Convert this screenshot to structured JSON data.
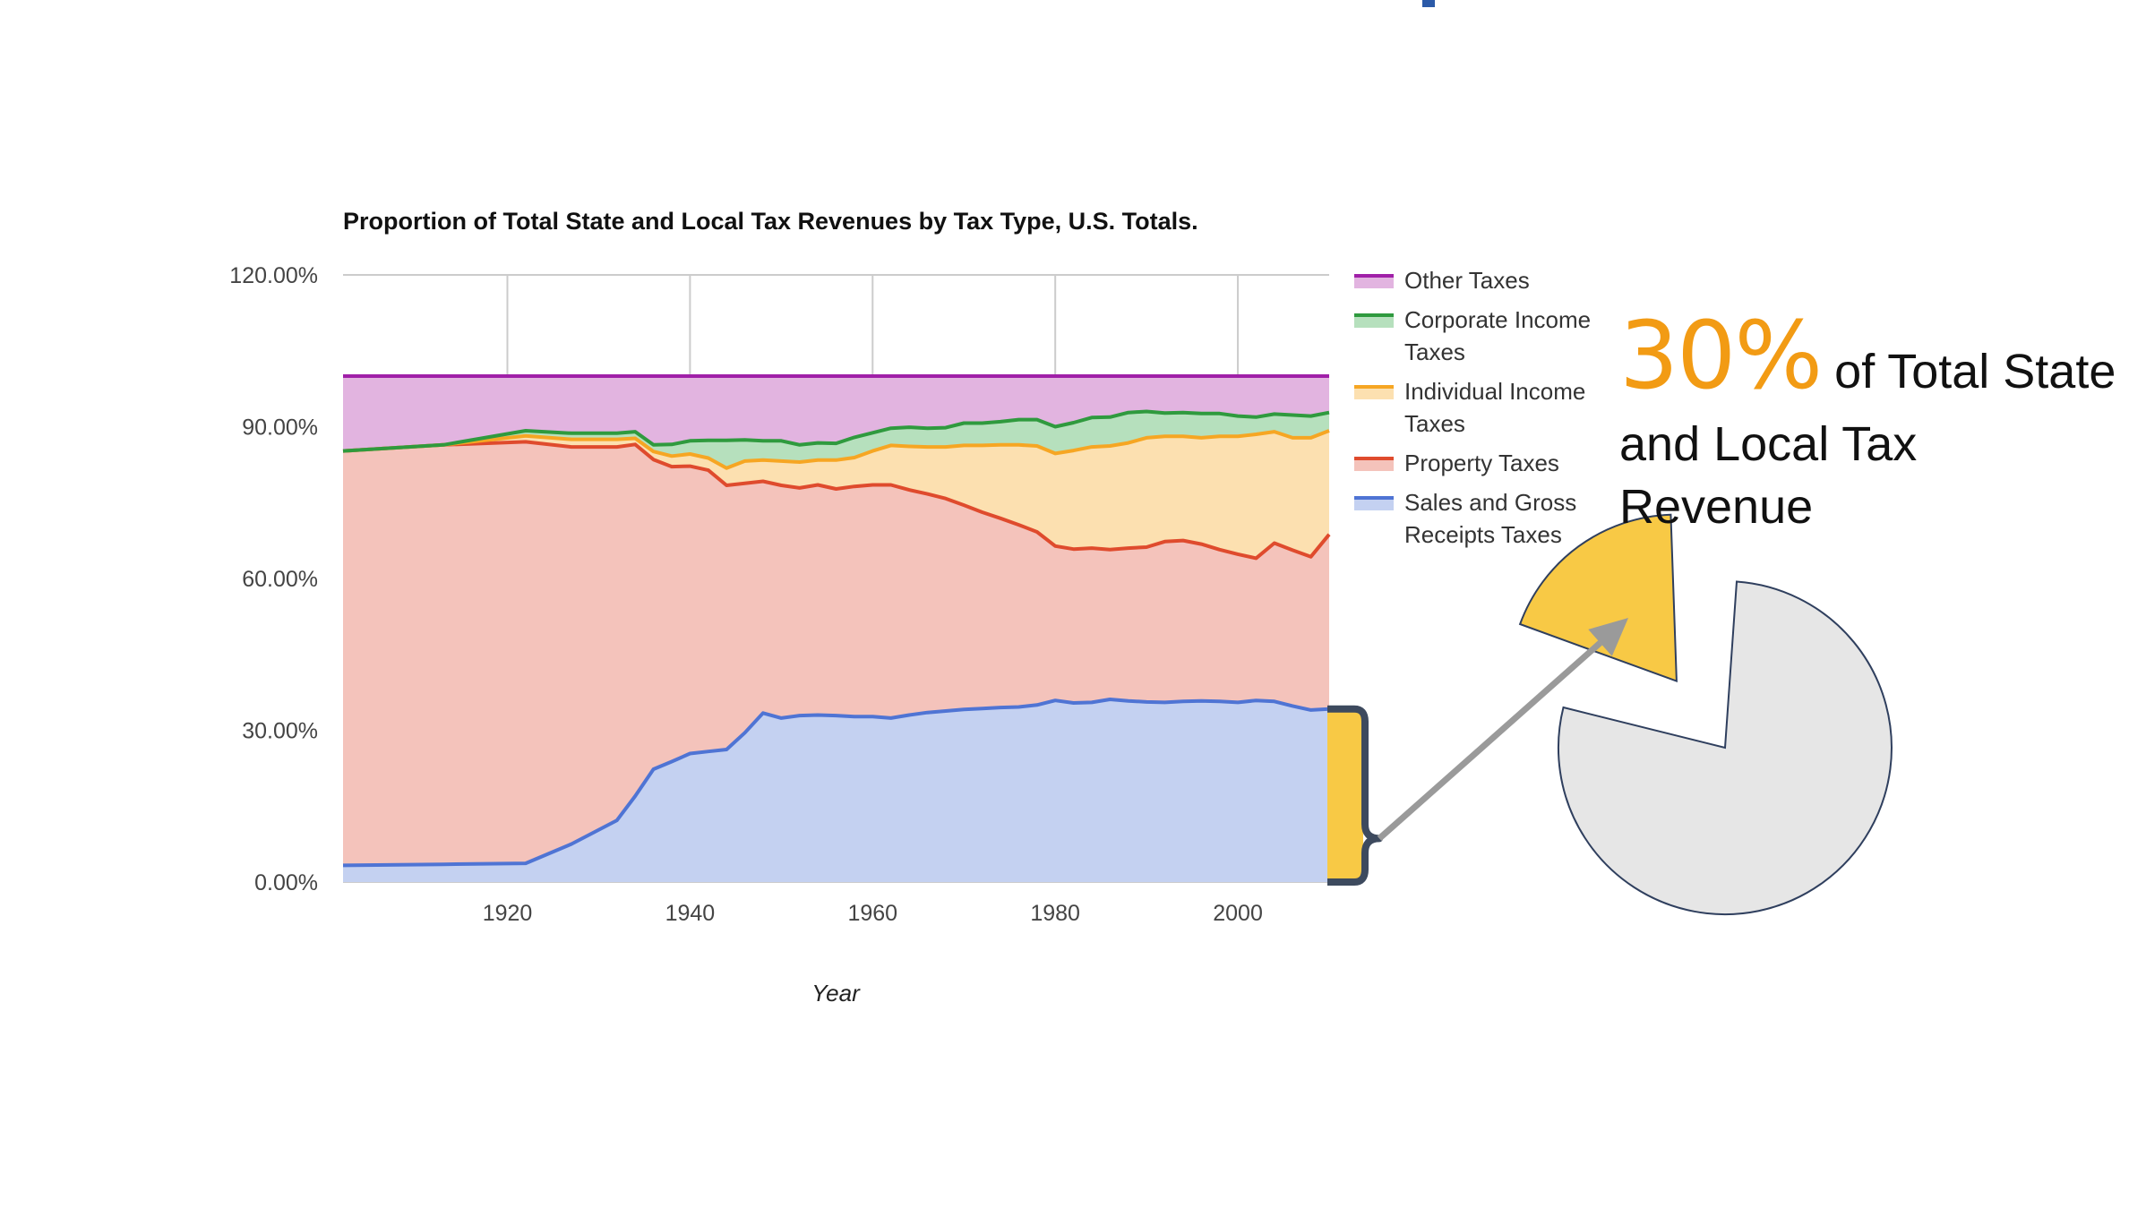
{
  "chart_data": {
    "type": "area",
    "stacked": true,
    "title": "Proportion of Total State and Local Tax Revenues by Tax Type, U.S. Totals.",
    "xlabel": "Year",
    "ylabel": "",
    "xlim": [
      1902,
      2010
    ],
    "ylim": [
      0,
      120
    ],
    "x_ticks": [
      "1920",
      "1940",
      "1960",
      "1980",
      "2000"
    ],
    "y_ticks": [
      "0.00%",
      "30.00%",
      "60.00%",
      "90.00%",
      "120.00%"
    ],
    "grid": true,
    "legend_position": "right",
    "x": [
      1902,
      1913,
      1922,
      1927,
      1932,
      1934,
      1936,
      1938,
      1940,
      1942,
      1944,
      1946,
      1948,
      1950,
      1952,
      1954,
      1956,
      1958,
      1960,
      1962,
      1964,
      1966,
      1968,
      1970,
      1972,
      1974,
      1976,
      1978,
      1980,
      1982,
      1984,
      1986,
      1988,
      1990,
      1992,
      1994,
      1996,
      1998,
      2000,
      2002,
      2004,
      2006,
      2008,
      2010
    ],
    "series": [
      {
        "name": "Sales and Gross Receipts Taxes",
        "color": "#4f74d4",
        "fill": "#c4d1f1",
        "values": [
          3.3,
          3.5,
          3.7,
          7.5,
          12.2,
          17.0,
          22.3,
          23.8,
          25.4,
          25.8,
          26.2,
          29.5,
          33.4,
          32.4,
          32.9,
          33.0,
          32.9,
          32.7,
          32.7,
          32.4,
          33.0,
          33.5,
          33.8,
          34.1,
          34.3,
          34.5,
          34.6,
          35.0,
          35.9,
          35.4,
          35.5,
          36.1,
          35.8,
          35.6,
          35.5,
          35.7,
          35.8,
          35.7,
          35.5,
          35.9,
          35.7,
          34.8,
          34.0,
          34.2
        ]
      },
      {
        "name": "Property Taxes",
        "color": "#df4b2d",
        "fill": "#f4c3bb",
        "values": [
          81.9,
          82.9,
          83.3,
          78.5,
          73.8,
          69.5,
          61.2,
          58.3,
          56.8,
          55.6,
          52.2,
          49.3,
          45.8,
          46.0,
          45.0,
          45.5,
          44.8,
          45.5,
          45.8,
          46.1,
          44.5,
          43.2,
          42.0,
          40.4,
          38.8,
          37.4,
          36.0,
          34.2,
          30.5,
          30.4,
          30.5,
          29.6,
          30.2,
          30.6,
          31.8,
          31.8,
          31.0,
          30.0,
          29.3,
          28.1,
          31.3,
          30.8,
          30.3,
          34.5
        ]
      },
      {
        "name": "Individual Income Taxes",
        "color": "#f6a623",
        "fill": "#fce0b0",
        "values": [
          0.0,
          0.0,
          1.2,
          1.5,
          1.5,
          1.2,
          1.6,
          2.1,
          2.4,
          2.4,
          3.4,
          4.4,
          4.2,
          4.8,
          5.1,
          4.9,
          5.7,
          5.7,
          6.7,
          7.8,
          8.6,
          9.3,
          10.2,
          11.8,
          13.2,
          14.5,
          15.8,
          17.0,
          18.3,
          19.5,
          20.0,
          20.5,
          20.8,
          21.6,
          20.8,
          20.6,
          21.0,
          22.4,
          23.3,
          24.5,
          22.0,
          22.2,
          23.5,
          20.5
        ]
      },
      {
        "name": "Corporate Income Taxes",
        "color": "#2f9a3e",
        "fill": "#b6e0bd",
        "values": [
          0.0,
          0.0,
          1.0,
          1.2,
          1.2,
          1.3,
          1.3,
          2.3,
          2.6,
          3.5,
          5.5,
          4.2,
          3.8,
          4.0,
          3.4,
          3.4,
          3.3,
          4.0,
          3.6,
          3.4,
          3.8,
          3.7,
          3.8,
          4.4,
          4.4,
          4.6,
          5.0,
          5.2,
          5.3,
          5.5,
          5.8,
          5.7,
          6.0,
          5.2,
          4.6,
          4.7,
          4.8,
          4.5,
          4.0,
          3.4,
          3.5,
          4.5,
          4.3,
          3.6
        ]
      },
      {
        "name": "Other Taxes",
        "color": "#a020a8",
        "fill": "#e2b4e0",
        "values": [
          14.8,
          13.6,
          10.8,
          11.3,
          11.3,
          11.0,
          13.6,
          13.5,
          12.8,
          12.7,
          12.7,
          12.6,
          12.8,
          12.8,
          13.6,
          13.2,
          13.3,
          12.1,
          11.2,
          10.3,
          10.1,
          10.3,
          10.2,
          9.3,
          9.3,
          9.0,
          8.6,
          8.6,
          10.0,
          9.2,
          8.2,
          8.1,
          7.2,
          7.0,
          7.3,
          7.2,
          7.4,
          7.4,
          7.9,
          8.1,
          7.5,
          7.7,
          7.9,
          7.2
        ]
      }
    ]
  },
  "callout": {
    "big": "30%",
    "text_line1": " of Total State",
    "text_line2": "and Local Tax Revenue"
  },
  "pie": {
    "highlight_fraction": 0.2,
    "highlight_color": "#f8c945",
    "rest_color": "#e6e6e6",
    "outline_color": "#2f3f5e",
    "arrow_color": "#9a9a9a",
    "brace_color": "#3d4a5e"
  }
}
